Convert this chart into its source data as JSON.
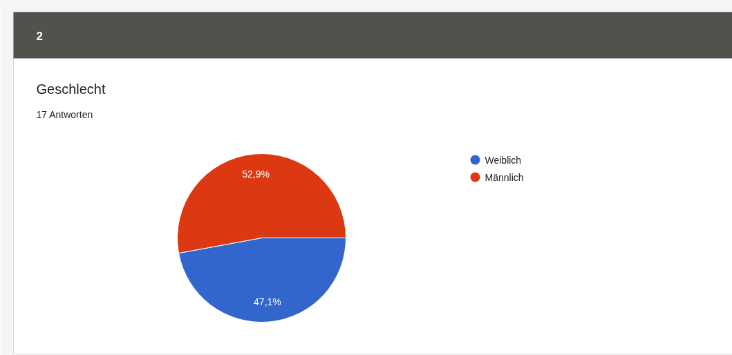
{
  "chart_data": {
    "type": "pie",
    "title": "Geschlecht",
    "subtitle": "17 Antworten",
    "annotations": [
      "2"
    ],
    "categories": [
      "Weiblich",
      "Männlich"
    ],
    "values": [
      47.1,
      52.9
    ],
    "colors": [
      "#3366cc",
      "#dc3912"
    ],
    "value_labels": [
      "47,1%",
      "52,9%"
    ],
    "legend": "right"
  }
}
